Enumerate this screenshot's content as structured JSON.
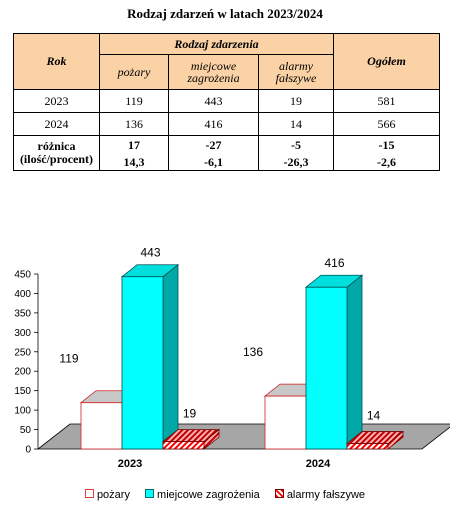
{
  "title": "Rodzaj zdarzeń w latach 2023/2024",
  "table": {
    "rok_header": "Rok",
    "group_header": "Rodzaj zdarzenia",
    "col_pozary": "pożary",
    "col_miejscowe": "miejcowe zagrożenia",
    "col_alarmy": "alarmy fałszywe",
    "ogolem_header": "Ogółem",
    "rows": [
      {
        "rok": "2023",
        "pozary": "119",
        "miejscowe": "443",
        "alarmy": "19",
        "ogolem": "581"
      },
      {
        "rok": "2024",
        "pozary": "136",
        "miejscowe": "416",
        "alarmy": "14",
        "ogolem": "566"
      }
    ],
    "roznica_label_1": "różnica",
    "roznica_label_2": "(ilość/procent)",
    "roznica_ilosc": {
      "pozary": "17",
      "miejscowe": "-27",
      "alarmy": "-5",
      "ogolem": "-15"
    },
    "roznica_procent": {
      "pozary": "14,3",
      "miejscowe": "-6,1",
      "alarmy": "-26,3",
      "ogolem": "-2,6"
    }
  },
  "chart_data": {
    "type": "bar",
    "categories": [
      "2023",
      "2024"
    ],
    "series": [
      {
        "name": "pożary",
        "values": [
          119,
          136
        ],
        "color": "#ffffff"
      },
      {
        "name": "miejcowe zagrożenia",
        "values": [
          443,
          416
        ],
        "color": "#00ffff"
      },
      {
        "name": "alarmy fałszywe",
        "values": [
          19,
          14
        ],
        "color": "#ff0000"
      }
    ],
    "ylim": [
      0,
      450
    ],
    "yticks": [
      "0",
      "50",
      "100",
      "150",
      "200",
      "250",
      "300",
      "350",
      "400",
      "450"
    ],
    "legend_position": "bottom",
    "grid": false
  },
  "legend": {
    "pozary": "pożary",
    "miejscowe": "miejcowe zagrożenia",
    "alarmy": "alarmy fałszywe"
  }
}
